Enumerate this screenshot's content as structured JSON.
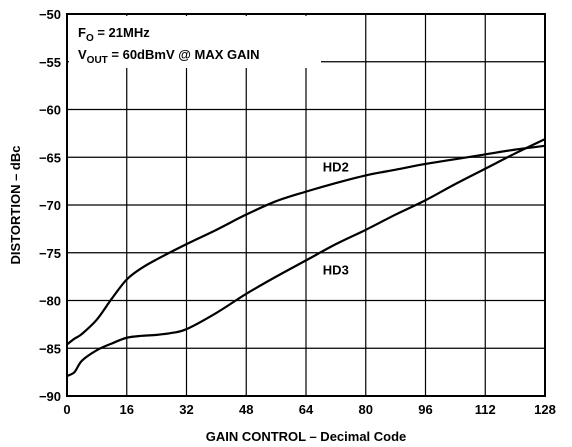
{
  "chart_data": {
    "type": "line",
    "xlabel": "GAIN CONTROL – Decimal Code",
    "ylabel": "DISTORTION – dBc",
    "xlim": [
      0,
      128
    ],
    "ylim": [
      -90,
      -50
    ],
    "xticks": [
      0,
      16,
      32,
      48,
      64,
      80,
      96,
      112,
      128
    ],
    "yticks": [
      -90,
      -85,
      -80,
      -75,
      -70,
      -65,
      -60,
      -55,
      -50
    ],
    "grid": true,
    "annotation": {
      "fo_main": "F",
      "fo_sub": "O",
      "fo_rest": " = 21MHz",
      "vout_main": "V",
      "vout_sub": "OUT",
      "vout_rest": " = 60dBmV @ MAX GAIN"
    },
    "series": [
      {
        "name": "HD2",
        "x": [
          0,
          2,
          4,
          8,
          12,
          16,
          20,
          24,
          32,
          40,
          48,
          56,
          64,
          72,
          80,
          88,
          96,
          104,
          112,
          120,
          128
        ],
        "y": [
          -84.6,
          -84.0,
          -83.5,
          -82.0,
          -79.8,
          -77.8,
          -76.6,
          -75.7,
          -74.1,
          -72.6,
          -71.0,
          -69.6,
          -68.6,
          -67.7,
          -66.9,
          -66.3,
          -65.7,
          -65.2,
          -64.7,
          -64.2,
          -63.8
        ]
      },
      {
        "name": "HD3",
        "x": [
          0,
          2,
          4,
          8,
          12,
          16,
          20,
          24,
          28,
          32,
          40,
          48,
          56,
          64,
          72,
          80,
          88,
          96,
          104,
          112,
          120,
          128
        ],
        "y": [
          -87.9,
          -87.5,
          -86.3,
          -85.2,
          -84.5,
          -83.9,
          -83.7,
          -83.6,
          -83.4,
          -83.0,
          -81.3,
          -79.3,
          -77.5,
          -75.8,
          -74.1,
          -72.6,
          -71.0,
          -69.5,
          -67.8,
          -66.2,
          -64.6,
          -63.1
        ]
      }
    ]
  }
}
